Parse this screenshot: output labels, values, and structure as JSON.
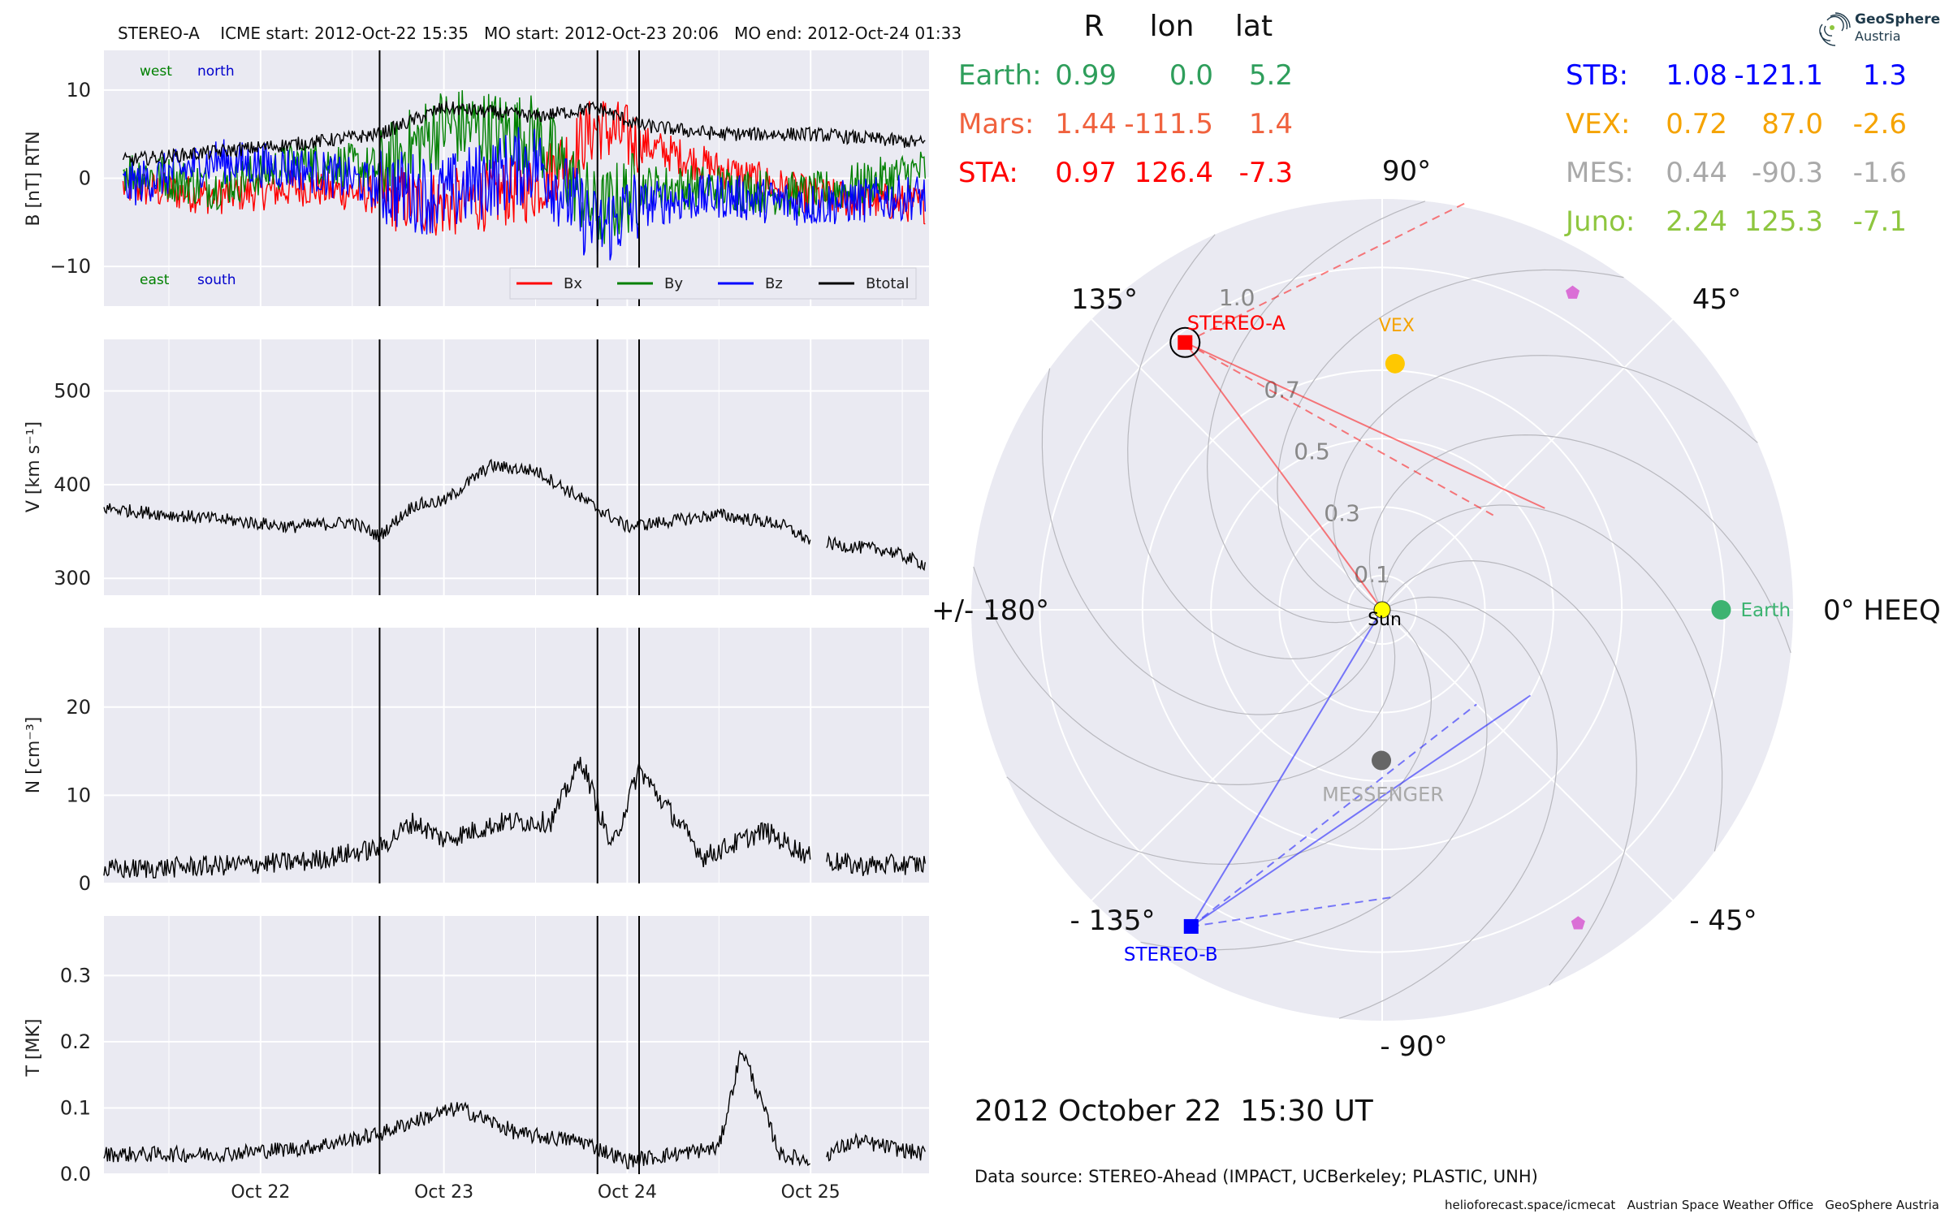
{
  "ts": {
    "header": "STEREO-A    ICME start: 2012-Oct-22 15:35   MO start: 2012-Oct-23 20:06   MO end: 2012-Oct-24 01:33",
    "mag_labels": {
      "west": "west",
      "north": "north",
      "east": "east",
      "south": "south"
    },
    "legend": [
      "Bx",
      "By",
      "Bz",
      "Btotal"
    ],
    "xtick_labels": [
      "Oct 22",
      "Oct 23",
      "Oct 24",
      "Oct 25"
    ],
    "vlines_labels": [
      "ICME start: 2012-Oct-22 15:35",
      "MO start: 2012-Oct-23 20:06",
      "MO end: 2012-Oct-24 01:33"
    ]
  },
  "polar": {
    "angle_labels": [
      "90°",
      "45°",
      "0° HEEQ",
      "- 45°",
      "- 90°",
      "- 135°",
      "+/- 180°",
      "135°"
    ],
    "radial_labels": [
      "0.1",
      "0.3",
      "0.5",
      "0.7",
      "1.0"
    ],
    "bodies": {
      "sun": "Sun",
      "earth": "Earth",
      "vex": "VEX",
      "messenger": "MESSENGER",
      "stereo_a": "STEREO-A",
      "stereo_b": "STEREO-B"
    },
    "date": "2012 October 22  15:30 UT",
    "source": "Data source: STEREO-Ahead (IMPACT, UCBerkeley; PLASTIC, UNH)",
    "footer": "helioforecast.space/icmecat   Austrian Space Weather Office   GeoSphere Austria"
  },
  "pos_table": {
    "header": [
      "R",
      "lon",
      "lat"
    ],
    "left_rows": [
      {
        "name": "Earth:",
        "r": "0.99",
        "lon": "0.0",
        "lat": "5.2",
        "color": "#2e9e5b"
      },
      {
        "name": "Mars:",
        "r": "1.44",
        "lon": "-111.5",
        "lat": "1.4",
        "color": "#f0623e"
      },
      {
        "name": "STA:",
        "r": "0.97",
        "lon": "126.4",
        "lat": "-7.3",
        "color": "#ff0000"
      }
    ],
    "right_rows": [
      {
        "name": "STB:",
        "r": "1.08",
        "lon": "-121.1",
        "lat": "1.3",
        "color": "#0000ff"
      },
      {
        "name": "VEX:",
        "r": "0.72",
        "lon": "87.0",
        "lat": "-2.6",
        "color": "#f5a300"
      },
      {
        "name": "MES:",
        "r": "0.44",
        "lon": "-90.3",
        "lat": "-1.6",
        "color": "#a9a9a9"
      },
      {
        "name": "Juno:",
        "r": "2.24",
        "lon": "125.3",
        "lat": "-7.1",
        "color": "#8ec63f"
      }
    ]
  },
  "logo": {
    "line1": "GeoSphere",
    "line2": "Austria"
  },
  "chart_data": [
    {
      "type": "line",
      "panel": "B",
      "ylabel": "B [nT] RTN",
      "ylim": [
        -14.5,
        14.5
      ],
      "yticks": [
        -10,
        0,
        10
      ],
      "xlim": [
        "2012-10-21 03:30",
        "2012-10-25 15:30"
      ],
      "xticks": [
        "2012-10-22",
        "2012-10-23",
        "2012-10-24",
        "2012-10-25"
      ],
      "legend_position": "lower-right",
      "grid": true,
      "series": [
        {
          "name": "Bx",
          "color": "#ff0000",
          "x": [
            "2012-10-21 06:00",
            "2012-10-21 18:00",
            "2012-10-22 06:00",
            "2012-10-22 15:35",
            "2012-10-23 00:00",
            "2012-10-23 12:00",
            "2012-10-23 20:06",
            "2012-10-24 01:33",
            "2012-10-24 12:00",
            "2012-10-25 00:00",
            "2012-10-25 15:00"
          ],
          "values": [
            -1,
            -2,
            -1,
            -2,
            -3,
            -1,
            6,
            4,
            1,
            -2,
            -3
          ]
        },
        {
          "name": "By",
          "color": "#008000",
          "x": [
            "2012-10-21 06:00",
            "2012-10-21 18:00",
            "2012-10-22 06:00",
            "2012-10-22 15:35",
            "2012-10-23 00:00",
            "2012-10-23 12:00",
            "2012-10-23 20:06",
            "2012-10-24 01:33",
            "2012-10-24 12:00",
            "2012-10-25 00:00",
            "2012-10-25 15:00"
          ],
          "values": [
            1,
            -1,
            2,
            1,
            6,
            5,
            -4,
            -1,
            -1,
            -2,
            1
          ]
        },
        {
          "name": "Bz",
          "color": "#0000ff",
          "x": [
            "2012-10-21 06:00",
            "2012-10-21 18:00",
            "2012-10-22 06:00",
            "2012-10-22 15:35",
            "2012-10-23 00:00",
            "2012-10-23 12:00",
            "2012-10-23 20:06",
            "2012-10-24 01:33",
            "2012-10-24 12:00",
            "2012-10-25 00:00",
            "2012-10-25 15:00"
          ],
          "values": [
            -1,
            2,
            1,
            -1,
            -2,
            2,
            -6,
            -3,
            -2,
            -3,
            -2
          ]
        },
        {
          "name": "Btotal",
          "color": "#000000",
          "x": [
            "2012-10-21 06:00",
            "2012-10-21 18:00",
            "2012-10-22 06:00",
            "2012-10-22 15:35",
            "2012-10-23 00:00",
            "2012-10-23 12:00",
            "2012-10-23 20:06",
            "2012-10-24 01:33",
            "2012-10-24 12:00",
            "2012-10-25 00:00",
            "2012-10-25 15:00"
          ],
          "values": [
            2,
            3,
            4,
            5,
            8,
            7,
            8,
            6,
            5,
            5,
            4
          ]
        }
      ]
    },
    {
      "type": "line",
      "panel": "V",
      "ylabel": "V [km s⁻¹]",
      "ylim": [
        282,
        555
      ],
      "yticks": [
        300,
        400,
        500
      ],
      "grid": true,
      "series": [
        {
          "color": "#000000",
          "x": [
            "2012-10-21 03:30",
            "2012-10-21 12:00",
            "2012-10-21 20:00",
            "2012-10-22 04:00",
            "2012-10-22 12:00",
            "2012-10-22 15:30",
            "2012-10-22 20:00",
            "2012-10-23 00:00",
            "2012-10-23 06:00",
            "2012-10-23 12:00",
            "2012-10-23 18:00",
            "2012-10-24 00:00",
            "2012-10-24 12:00",
            "2012-10-24 20:00",
            "2012-10-25 00:00",
            "2012-10-25 04:00",
            "2012-10-25 10:00",
            "2012-10-25 15:00"
          ],
          "values": [
            375,
            368,
            362,
            355,
            360,
            345,
            378,
            382,
            420,
            415,
            385,
            355,
            368,
            358,
            340,
            335,
            330,
            315
          ]
        }
      ]
    },
    {
      "type": "line",
      "panel": "N",
      "ylabel": "N [cm⁻³]",
      "ylim": [
        0,
        29
      ],
      "yticks": [
        0,
        10,
        20
      ],
      "grid": true,
      "series": [
        {
          "color": "#000000",
          "x": [
            "2012-10-21 03:30",
            "2012-10-21 18:00",
            "2012-10-22 06:00",
            "2012-10-22 15:30",
            "2012-10-22 20:00",
            "2012-10-23 00:00",
            "2012-10-23 08:00",
            "2012-10-23 14:00",
            "2012-10-23 18:00",
            "2012-10-23 22:00",
            "2012-10-24 01:33",
            "2012-10-24 04:00",
            "2012-10-24 10:00",
            "2012-10-24 18:00",
            "2012-10-25 00:00",
            "2012-10-25 06:00",
            "2012-10-25 15:00"
          ],
          "values": [
            1.5,
            2,
            2.5,
            4,
            7,
            5,
            7,
            7,
            14,
            4,
            13,
            10,
            3,
            6,
            3,
            2,
            2.2
          ]
        }
      ]
    },
    {
      "type": "line",
      "panel": "T",
      "ylabel": "T [MK]",
      "ylim": [
        0,
        0.39
      ],
      "yticks": [
        0.0,
        0.1,
        0.2,
        0.3
      ],
      "grid": true,
      "series": [
        {
          "color": "#000000",
          "x": [
            "2012-10-21 03:30",
            "2012-10-21 18:00",
            "2012-10-22 06:00",
            "2012-10-22 15:30",
            "2012-10-22 20:00",
            "2012-10-23 02:00",
            "2012-10-23 10:00",
            "2012-10-23 18:00",
            "2012-10-24 00:00",
            "2012-10-24 06:00",
            "2012-10-24 12:00",
            "2012-10-24 15:00",
            "2012-10-24 20:00",
            "2012-10-25 00:00",
            "2012-10-25 06:00",
            "2012-10-25 15:00"
          ],
          "values": [
            0.03,
            0.03,
            0.04,
            0.06,
            0.08,
            0.1,
            0.06,
            0.05,
            0.02,
            0.03,
            0.04,
            0.19,
            0.03,
            0.02,
            0.05,
            0.03
          ]
        }
      ]
    },
    {
      "type": "scatter",
      "panel": "polar",
      "projection": "polar",
      "angle_unit": "degrees HEEQ longitude",
      "radial_unit": "AU",
      "rlim": [
        0,
        1.2
      ],
      "points": [
        {
          "name": "Sun",
          "lon": 0,
          "r": 0,
          "color": "#ffff00"
        },
        {
          "name": "Earth",
          "lon": 0.0,
          "r": 0.99,
          "color": "#3cb371"
        },
        {
          "name": "VEX",
          "lon": 87.0,
          "r": 0.72,
          "color": "#ffc800"
        },
        {
          "name": "MESSENGER",
          "lon": -90.3,
          "r": 0.44,
          "color": "#666666"
        },
        {
          "name": "STEREO-A",
          "lon": 126.4,
          "r": 0.97,
          "color": "#ff0000"
        },
        {
          "name": "STEREO-B",
          "lon": -121.1,
          "r": 1.08,
          "color": "#0000ff"
        },
        {
          "lon": 59,
          "r": 1.08,
          "color": "#da70d6"
        },
        {
          "lon": -58,
          "r": 1.08,
          "color": "#da70d6"
        }
      ]
    }
  ]
}
